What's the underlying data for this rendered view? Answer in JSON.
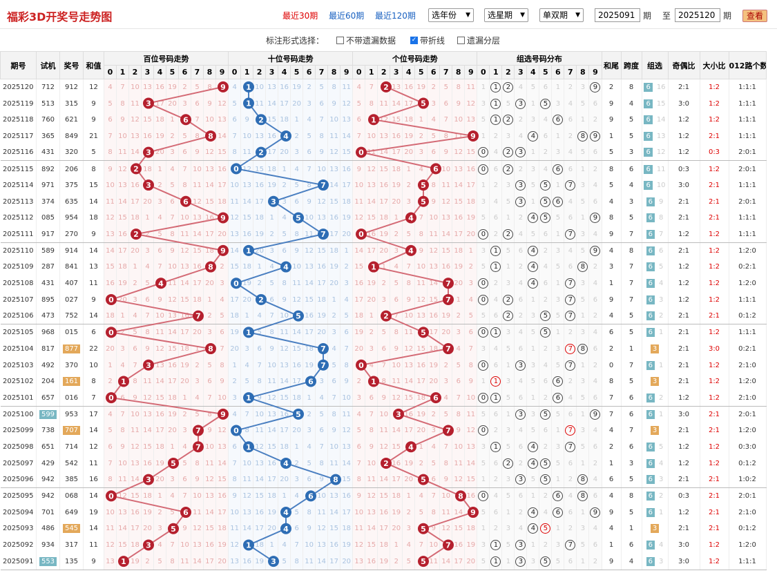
{
  "header": {
    "title": "福彩3D开奖号走势图",
    "links": [
      "最近30期",
      "最近60期",
      "最近120期"
    ],
    "active_link": 0,
    "selects": [
      "选年份",
      "选星期",
      "单双期"
    ],
    "from_label": "期",
    "to_label": "至",
    "to_suffix": "期",
    "start": "2025091",
    "end": "2025120",
    "search_label": "查看"
  },
  "options": {
    "label": "标注形式选择：",
    "items": [
      {
        "label": "不带遗漏数据",
        "checked": false
      },
      {
        "label": "带折线",
        "checked": true
      },
      {
        "label": "遗漏分层",
        "checked": false
      }
    ]
  },
  "table": {
    "cols": {
      "period": "期号",
      "trial": "试机",
      "win": "奖号",
      "sum": "和值",
      "hundreds": "百位号码走势",
      "tens": "十位号码走势",
      "units": "个位号码走势",
      "group": "组选号码分布",
      "tail": "和尾",
      "span": "跨度",
      "zu": "组选",
      "oe": "奇偶比",
      "bs": "大小比",
      "mod": "012路个数比"
    },
    "digits": [
      "0",
      "1",
      "2",
      "3",
      "4",
      "5",
      "6",
      "7",
      "8",
      "9"
    ],
    "rows": [
      {
        "p": "2025120",
        "t": "712",
        "w": "912",
        "s": "12",
        "tail": "2",
        "span": "8",
        "zu": "6",
        "zum": "16",
        "oe": "2:1",
        "bs": "1:2",
        "m": "1:1:1"
      },
      {
        "p": "2025119",
        "t": "513",
        "w": "315",
        "s": "9",
        "tail": "9",
        "span": "4",
        "zu": "6",
        "zum": "15",
        "oe": "3:0",
        "bs": "1:2",
        "m": "1:1:1"
      },
      {
        "p": "2025118",
        "t": "760",
        "w": "621",
        "s": "9",
        "tail": "9",
        "span": "5",
        "zu": "6",
        "zum": "14",
        "oe": "1:2",
        "bs": "1:2",
        "m": "1:1:1"
      },
      {
        "p": "2025117",
        "t": "365",
        "w": "849",
        "s": "21",
        "tail": "1",
        "span": "5",
        "zu": "6",
        "zum": "13",
        "oe": "1:2",
        "bs": "2:1",
        "m": "1:1:1"
      },
      {
        "p": "2025116",
        "t": "431",
        "w": "320",
        "s": "5",
        "tail": "5",
        "span": "3",
        "zu": "6",
        "zum": "12",
        "oe": "1:2",
        "bs": "0:3",
        "m": "2:0:1"
      },
      {
        "p": "2025115",
        "t": "892",
        "w": "206",
        "s": "8",
        "tail": "8",
        "span": "6",
        "zu": "6",
        "zum": "11",
        "oe": "0:3",
        "bs": "1:2",
        "m": "2:0:1"
      },
      {
        "p": "2025114",
        "t": "971",
        "w": "375",
        "s": "15",
        "tail": "5",
        "span": "4",
        "zu": "6",
        "zum": "10",
        "oe": "3:0",
        "bs": "2:1",
        "m": "1:1:1"
      },
      {
        "p": "2025113",
        "t": "374",
        "w": "635",
        "s": "14",
        "tail": "4",
        "span": "3",
        "zu": "6",
        "zum": "9",
        "oe": "2:1",
        "bs": "2:1",
        "m": "2:0:1"
      },
      {
        "p": "2025112",
        "t": "085",
        "w": "954",
        "s": "18",
        "tail": "8",
        "span": "5",
        "zu": "6",
        "zum": "8",
        "oe": "2:1",
        "bs": "2:1",
        "m": "1:1:1"
      },
      {
        "p": "2025111",
        "t": "917",
        "w": "270",
        "s": "9",
        "tail": "9",
        "span": "7",
        "zu": "6",
        "zum": "7",
        "oe": "1:2",
        "bs": "1:2",
        "m": "1:1:1"
      },
      {
        "p": "2025110",
        "t": "589",
        "w": "914",
        "s": "14",
        "tail": "4",
        "span": "8",
        "zu": "6",
        "zum": "6",
        "oe": "2:1",
        "bs": "1:2",
        "m": "1:2:0"
      },
      {
        "p": "2025109",
        "t": "287",
        "w": "841",
        "s": "13",
        "tail": "3",
        "span": "7",
        "zu": "6",
        "zum": "5",
        "oe": "1:2",
        "bs": "1:2",
        "m": "0:2:1"
      },
      {
        "p": "2025108",
        "t": "431",
        "w": "407",
        "s": "11",
        "tail": "1",
        "span": "7",
        "zu": "6",
        "zum": "4",
        "oe": "1:2",
        "bs": "1:2",
        "m": "1:2:0"
      },
      {
        "p": "2025107",
        "t": "895",
        "w": "027",
        "s": "9",
        "tail": "9",
        "span": "7",
        "zu": "6",
        "zum": "3",
        "oe": "1:2",
        "bs": "1:2",
        "m": "1:1:1"
      },
      {
        "p": "2025106",
        "t": "473",
        "w": "752",
        "s": "14",
        "tail": "4",
        "span": "5",
        "zu": "6",
        "zum": "2",
        "oe": "2:1",
        "bs": "2:1",
        "m": "0:1:2"
      },
      {
        "p": "2025105",
        "t": "968",
        "w": "015",
        "s": "6",
        "tail": "6",
        "span": "5",
        "zu": "6",
        "zum": "1",
        "oe": "2:1",
        "bs": "1:2",
        "m": "1:1:1"
      },
      {
        "p": "2025104",
        "t": "817",
        "w": "877",
        "s": "22",
        "tail": "2",
        "span": "1",
        "zu": "3",
        "zum": "",
        "oe": "2:1",
        "bs": "3:0",
        "m": "0:2:1",
        "wb": "or"
      },
      {
        "p": "2025103",
        "t": "492",
        "w": "370",
        "s": "10",
        "tail": "0",
        "span": "7",
        "zu": "6",
        "zum": "1",
        "oe": "2:1",
        "bs": "1:2",
        "m": "2:1:0"
      },
      {
        "p": "2025102",
        "t": "204",
        "w": "161",
        "s": "8",
        "tail": "8",
        "span": "5",
        "zu": "3",
        "zum": "",
        "oe": "2:1",
        "bs": "1:2",
        "m": "1:2:0",
        "wb": "or"
      },
      {
        "p": "2025101",
        "t": "657",
        "w": "016",
        "s": "7",
        "tail": "7",
        "span": "6",
        "zu": "6",
        "zum": "2",
        "oe": "1:2",
        "bs": "1:2",
        "m": "2:1:0"
      },
      {
        "p": "2025100",
        "t": "599",
        "w": "953",
        "s": "17",
        "tail": "7",
        "span": "6",
        "zu": "6",
        "zum": "1",
        "oe": "3:0",
        "bs": "2:1",
        "m": "2:0:1",
        "tb": "teal"
      },
      {
        "p": "2025099",
        "t": "738",
        "w": "707",
        "s": "14",
        "tail": "4",
        "span": "7",
        "zu": "3",
        "zum": "",
        "oe": "2:1",
        "bs": "2:1",
        "m": "1:2:0",
        "wb": "or"
      },
      {
        "p": "2025098",
        "t": "651",
        "w": "714",
        "s": "12",
        "tail": "2",
        "span": "6",
        "zu": "6",
        "zum": "5",
        "oe": "1:2",
        "bs": "1:2",
        "m": "0:3:0"
      },
      {
        "p": "2025097",
        "t": "429",
        "w": "542",
        "s": "11",
        "tail": "1",
        "span": "3",
        "zu": "6",
        "zum": "4",
        "oe": "1:2",
        "bs": "1:2",
        "m": "0:1:2"
      },
      {
        "p": "2025096",
        "t": "942",
        "w": "385",
        "s": "16",
        "tail": "6",
        "span": "5",
        "zu": "6",
        "zum": "3",
        "oe": "2:1",
        "bs": "2:1",
        "m": "1:0:2"
      },
      {
        "p": "2025095",
        "t": "942",
        "w": "068",
        "s": "14",
        "tail": "4",
        "span": "8",
        "zu": "6",
        "zum": "2",
        "oe": "0:3",
        "bs": "2:1",
        "m": "2:0:1"
      },
      {
        "p": "2025094",
        "t": "701",
        "w": "649",
        "s": "19",
        "tail": "9",
        "span": "5",
        "zu": "6",
        "zum": "1",
        "oe": "1:2",
        "bs": "2:1",
        "m": "2:1:0"
      },
      {
        "p": "2025093",
        "t": "486",
        "w": "545",
        "s": "14",
        "tail": "4",
        "span": "1",
        "zu": "3",
        "zum": "",
        "oe": "2:1",
        "bs": "2:1",
        "m": "0:1:2",
        "wb": "or"
      },
      {
        "p": "2025092",
        "t": "934",
        "w": "317",
        "s": "11",
        "tail": "1",
        "span": "6",
        "zu": "6",
        "zum": "4",
        "oe": "3:0",
        "bs": "1:2",
        "m": "1:2:0"
      },
      {
        "p": "2025091",
        "t": "553",
        "w": "135",
        "s": "9",
        "tail": "9",
        "span": "4",
        "zu": "6",
        "zum": "3",
        "oe": "3:0",
        "bs": "1:2",
        "m": "1:1:1",
        "tb": "teal"
      }
    ]
  },
  "colors": {
    "red": "#b5202e",
    "blue": "#2e6db4",
    "teal": "#78b7c3",
    "orange": "#e3a85a"
  }
}
